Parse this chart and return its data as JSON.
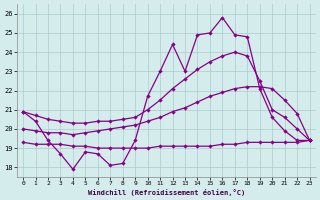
{
  "xlabel": "Windchill (Refroidissement éolien,°C)",
  "bg_color": "#d4ecec",
  "line_color": "#880088",
  "grid_color": "#aacccc",
  "xlim": [
    -0.5,
    23.5
  ],
  "ylim": [
    17.5,
    26.5
  ],
  "yticks": [
    18,
    19,
    20,
    21,
    22,
    23,
    24,
    25,
    26
  ],
  "xticks": [
    0,
    1,
    2,
    3,
    4,
    5,
    6,
    7,
    8,
    9,
    10,
    11,
    12,
    13,
    14,
    15,
    16,
    17,
    18,
    19,
    20,
    21,
    22,
    23
  ],
  "line1_x": [
    0,
    1,
    2,
    3,
    4,
    5,
    6,
    7,
    8,
    9,
    10,
    11,
    12,
    13,
    14,
    15,
    16,
    17,
    18,
    19,
    20,
    21,
    22,
    23
  ],
  "line1_y": [
    20.9,
    20.4,
    19.4,
    18.7,
    17.9,
    18.8,
    18.7,
    18.1,
    18.2,
    19.4,
    21.7,
    23.0,
    24.4,
    23.0,
    24.9,
    25.0,
    25.8,
    24.9,
    24.8,
    22.1,
    20.6,
    19.9,
    19.4,
    19.4
  ],
  "line2_x": [
    0,
    1,
    2,
    3,
    4,
    5,
    6,
    7,
    8,
    9,
    10,
    11,
    12,
    13,
    14,
    15,
    16,
    17,
    18,
    19,
    20,
    21,
    22,
    23
  ],
  "line2_y": [
    19.3,
    19.2,
    19.2,
    19.2,
    19.1,
    19.1,
    19.0,
    19.0,
    19.0,
    19.0,
    19.0,
    19.1,
    19.1,
    19.1,
    19.1,
    19.1,
    19.2,
    19.2,
    19.3,
    19.3,
    19.3,
    19.3,
    19.3,
    19.4
  ],
  "line3_x": [
    0,
    1,
    2,
    3,
    4,
    5,
    6,
    7,
    8,
    9,
    10,
    11,
    12,
    13,
    14,
    15,
    16,
    17,
    18,
    19,
    20,
    21,
    22,
    23
  ],
  "line3_y": [
    20.0,
    19.9,
    19.8,
    19.8,
    19.7,
    19.8,
    19.9,
    20.0,
    20.1,
    20.2,
    20.4,
    20.6,
    20.9,
    21.1,
    21.4,
    21.7,
    21.9,
    22.1,
    22.2,
    22.2,
    22.1,
    21.5,
    20.8,
    19.4
  ],
  "line4_x": [
    0,
    1,
    2,
    3,
    4,
    5,
    6,
    7,
    8,
    9,
    10,
    11,
    12,
    13,
    14,
    15,
    16,
    17,
    18,
    19,
    20,
    21,
    22,
    23
  ],
  "line4_y": [
    20.9,
    20.7,
    20.5,
    20.4,
    20.3,
    20.3,
    20.4,
    20.4,
    20.5,
    20.6,
    21.0,
    21.5,
    22.1,
    22.6,
    23.1,
    23.5,
    23.8,
    24.0,
    23.8,
    22.5,
    21.0,
    20.6,
    20.0,
    19.4
  ]
}
